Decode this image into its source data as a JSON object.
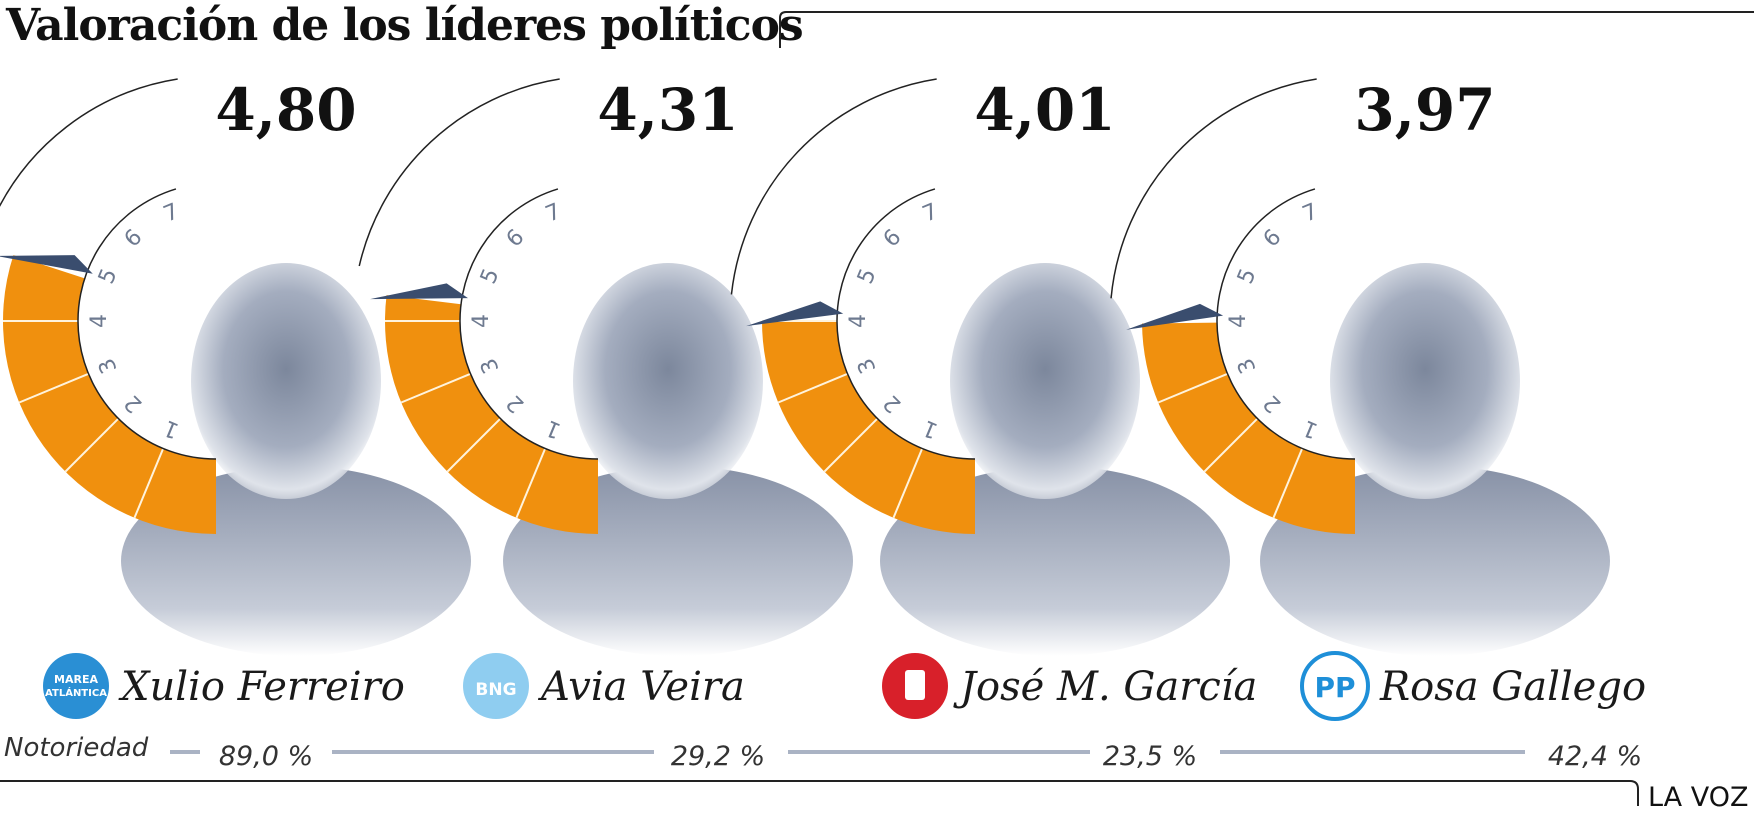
{
  "chart_data": {
    "type": "gauge",
    "title": "Valoración de los líderes políticos",
    "scale_ticks": [
      "1",
      "2",
      "3",
      "4",
      "5",
      "6",
      "7"
    ],
    "scale_min": 0,
    "scale_max": 8,
    "leaders": [
      {
        "name": "Xulio Ferreiro",
        "party_logo": "marea-atlantica-logo",
        "logo_text_1": "MAREA",
        "logo_text_2": "ATLÁNTICA",
        "rating": 4.8,
        "rating_label": "4,80",
        "notoriedad": 89.0,
        "notoriedad_label": "89,0 %"
      },
      {
        "name": "Avia Veira",
        "party_logo": "bng-logo",
        "logo_text_1": "BNG",
        "logo_text_2": "",
        "rating": 4.31,
        "rating_label": "4,31",
        "notoriedad": 29.2,
        "notoriedad_label": "29,2 %"
      },
      {
        "name": "José M. García",
        "party_logo": "psoe-logo",
        "logo_text_1": "",
        "logo_text_2": "",
        "rating": 4.01,
        "rating_label": "4,01",
        "notoriedad": 23.5,
        "notoriedad_label": "23,5 %"
      },
      {
        "name": "Rosa Gallego",
        "party_logo": "pp-logo",
        "logo_text_1": "PP",
        "logo_text_2": "",
        "rating": 3.97,
        "rating_label": "3,97",
        "notoriedad": 42.4,
        "notoriedad_label": "42,4 %"
      }
    ],
    "notoriedad_label": "Notoriedad",
    "source": "LA VOZ"
  },
  "colors": {
    "gauge_fill": "#f0900e",
    "needle": "#3a4d6e",
    "tick_text": "#6e7a90",
    "photo_tone": "#8a93a8",
    "notoriedad_line": "#aab3c4",
    "marea_blue": "#2a8fd4",
    "bng_blue": "#8fcdf0",
    "psoe_red": "#d8202a",
    "pp_blue": "#1e8fd8"
  }
}
